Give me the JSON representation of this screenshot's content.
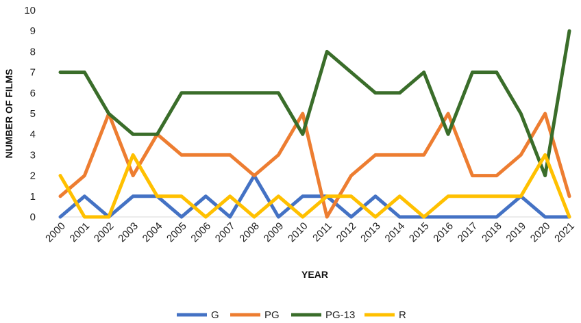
{
  "chart_data": {
    "type": "line",
    "xlabel": "YEAR",
    "ylabel": "NUMBER OF FILMS",
    "ylim": [
      0,
      10
    ],
    "yticks": [
      0,
      1,
      2,
      3,
      4,
      5,
      6,
      7,
      8,
      9,
      10
    ],
    "grid": false,
    "legend_position": "bottom",
    "x": [
      "2000",
      "2001",
      "2002",
      "2003",
      "2004",
      "2005",
      "2006",
      "2007",
      "2008",
      "2009",
      "2010",
      "2011",
      "2012",
      "2013",
      "2014",
      "2015",
      "2016",
      "2017",
      "2018",
      "2019",
      "2020",
      "2021"
    ],
    "series": [
      {
        "name": "G",
        "color": "#4472C4",
        "values": [
          0,
          1,
          0,
          1,
          1,
          0,
          1,
          0,
          2,
          0,
          1,
          1,
          0,
          1,
          0,
          0,
          0,
          0,
          0,
          1,
          0,
          0
        ]
      },
      {
        "name": "PG",
        "color": "#ED7D31",
        "values": [
          1,
          2,
          5,
          2,
          4,
          3,
          3,
          3,
          2,
          3,
          5,
          0,
          2,
          3,
          3,
          3,
          5,
          2,
          2,
          3,
          5,
          1
        ]
      },
      {
        "name": "PG-13",
        "color": "#3A6D2A",
        "values": [
          7,
          7,
          5,
          4,
          4,
          6,
          6,
          6,
          6,
          6,
          4,
          8,
          7,
          6,
          6,
          7,
          4,
          7,
          7,
          5,
          2,
          9
        ]
      },
      {
        "name": "R",
        "color": "#FFC000",
        "values": [
          2,
          0,
          0,
          3,
          1,
          1,
          0,
          1,
          0,
          1,
          0,
          1,
          1,
          0,
          1,
          0,
          1,
          1,
          1,
          1,
          3,
          0
        ]
      }
    ]
  }
}
